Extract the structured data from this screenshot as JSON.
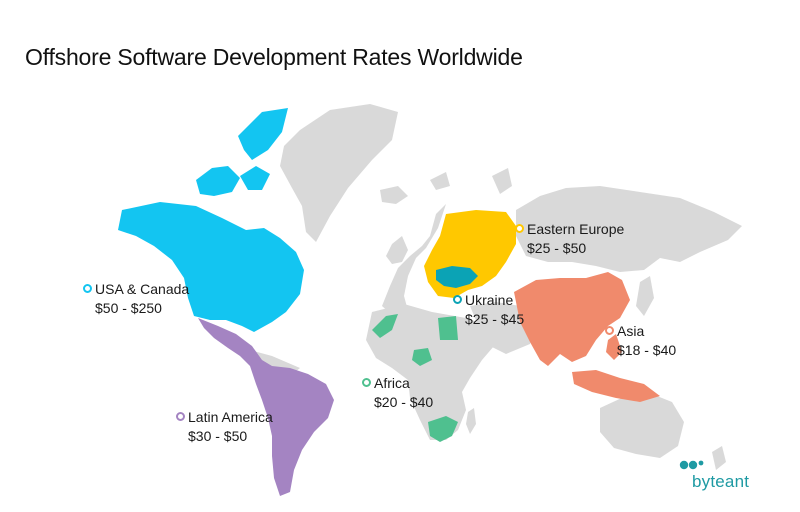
{
  "title": "Offshore Software Development Rates Worldwide",
  "colors": {
    "land": "#d9d9d9",
    "usa_canada": "#13c5f1",
    "latin_america": "#a484c2",
    "eastern_europe": "#ffc800",
    "ukraine": "#0ba3b5",
    "asia": "#f08a6c",
    "africa": "#4fc08f"
  },
  "regions": {
    "usa_canada": {
      "name": "USA & Canada",
      "rate": "$50 - $250"
    },
    "latin_america": {
      "name": "Latin America",
      "rate": "$30 - $50"
    },
    "eastern_europe": {
      "name": "Eastern Europe",
      "rate": "$25 - $50"
    },
    "ukraine": {
      "name": "Ukraine",
      "rate": "$25 - $45"
    },
    "asia": {
      "name": "Asia",
      "rate": "$18 - $40"
    },
    "africa": {
      "name": "Africa",
      "rate": "$20 - $40"
    }
  },
  "logo": {
    "text": "byteant",
    "color": "#1e9aa3"
  }
}
